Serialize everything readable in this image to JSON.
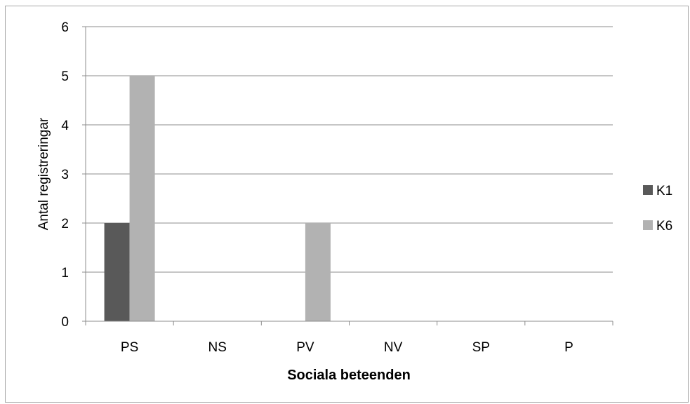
{
  "chart_data": {
    "type": "bar",
    "xlabel": "Sociala beteenden",
    "ylabel": "Antal registreringar",
    "categories": [
      "PS",
      "NS",
      "PV",
      "NV",
      "SP",
      "P"
    ],
    "series": [
      {
        "name": "K1",
        "values": [
          2,
          0,
          0,
          0,
          0,
          0
        ],
        "color": "#595959"
      },
      {
        "name": "K6",
        "values": [
          5,
          0,
          2,
          0,
          0,
          0
        ],
        "color": "#b2b2b2"
      }
    ],
    "ylim": [
      0,
      6
    ],
    "yticks": [
      0,
      1,
      2,
      3,
      4,
      5,
      6
    ],
    "grid": true,
    "legend_position": "right"
  }
}
